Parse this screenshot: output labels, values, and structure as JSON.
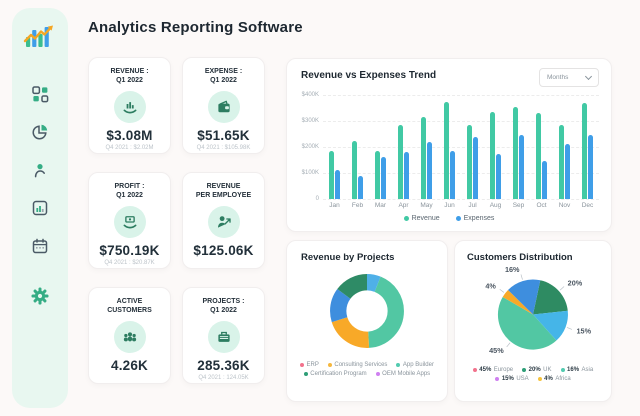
{
  "app": {
    "title": "Analytics Reporting Software"
  },
  "sidebar": {
    "items": [
      {
        "icon": "logo-analytics-icon"
      },
      {
        "icon": "dashboard-grid-icon"
      },
      {
        "icon": "pie-chart-icon"
      },
      {
        "icon": "user-icon"
      },
      {
        "icon": "stats-panel-icon"
      },
      {
        "icon": "calendar-icon"
      },
      {
        "icon": "settings-gear-icon"
      }
    ]
  },
  "kpi": {
    "cards": [
      {
        "title": "REVENUE :\nQ1 2022",
        "value": "$3.08M",
        "subtitle": "Q4 2021 : $2.02M",
        "icon": "hand-chart-icon"
      },
      {
        "title": "EXPENSE :\nQ1 2022",
        "value": "$51.65K",
        "subtitle": "Q4 2021 : $105.98K",
        "icon": "wallet-icon"
      },
      {
        "title": "PROFIT :\nQ1 2022",
        "value": "$750.19K",
        "subtitle": "Q4 2021 : $20.87K",
        "icon": "hand-money-icon"
      },
      {
        "title": "REVENUE\nPER EMPLOYEE",
        "value": "$125.06K",
        "subtitle": "",
        "icon": "employee-growth-icon"
      },
      {
        "title": "ACTIVE\nCUSTOMERS",
        "value": "4.26K",
        "subtitle": "",
        "icon": "customers-icon"
      },
      {
        "title": "PROJECTS :\nQ1 2022",
        "value": "285.36K",
        "subtitle": "Q4 2021 : 124.05K",
        "icon": "briefcase-icon"
      }
    ]
  },
  "trend": {
    "title": "Revenue vs Expenses Trend",
    "dropdown_value": "Months"
  },
  "chart_data": [
    {
      "type": "bar",
      "title": "Revenue vs Expenses Trend",
      "categories": [
        "Jan",
        "Feb",
        "Mar",
        "Apr",
        "May",
        "Jun",
        "Jul",
        "Aug",
        "Sep",
        "Oct",
        "Nov",
        "Dec"
      ],
      "series": [
        {
          "name": "Revenue",
          "color": "#41C9A4",
          "values": [
            185,
            225,
            185,
            285,
            315,
            375,
            285,
            335,
            355,
            330,
            285,
            370
          ]
        },
        {
          "name": "Expenses",
          "color": "#3F9EE8",
          "values": [
            110,
            90,
            160,
            180,
            220,
            185,
            240,
            175,
            245,
            145,
            210,
            245
          ]
        }
      ],
      "value_unit": "K USD",
      "ylim": [
        0,
        400
      ],
      "yticks": [
        "$400K",
        "$300K",
        "$200K",
        "$100K",
        "0"
      ],
      "grid": true,
      "legend_position": "bottom"
    },
    {
      "type": "pie",
      "subtype": "donut",
      "title": "Revenue by Projects",
      "segments_clockwise_from_top": [
        {
          "pct": 6,
          "color": "#4FB0E8"
        },
        {
          "pct": 43,
          "color": "#52C7A3"
        },
        {
          "pct": 21,
          "color": "#F8A928"
        },
        {
          "pct": 15,
          "color": "#3E8EDE"
        },
        {
          "pct": 15,
          "color": "#2E8B66"
        }
      ],
      "legend": [
        {
          "label": "ERP",
          "color": "#F2728C"
        },
        {
          "label": "Consulting Services",
          "color": "#F5B73E"
        },
        {
          "label": "App Builder",
          "color": "#52CBB0"
        },
        {
          "label": "Certification Program",
          "color": "#2E9E77"
        },
        {
          "label": "OEM Mobile Apps",
          "color": "#CF80F0"
        }
      ]
    },
    {
      "type": "pie",
      "title": "Customers Distribution",
      "start_angle_deg": 12,
      "segments_clockwise": [
        {
          "label": "UK",
          "pct": 20,
          "color": "#2E8B62",
          "callout": "20%"
        },
        {
          "label": "USA",
          "pct": 15,
          "color": "#45B5E8",
          "callout": "15%"
        },
        {
          "label": "Europe",
          "pct": 45,
          "color": "#52C7A3",
          "callout": "45%"
        },
        {
          "label": "Africa",
          "pct": 4,
          "color": "#F8A928",
          "callout": "4%"
        },
        {
          "label": "Asia",
          "pct": 16,
          "color": "#3E8EDE",
          "callout": "16%"
        }
      ],
      "legend": [
        {
          "pct": "45%",
          "label": "Europe",
          "color": "#F2728C"
        },
        {
          "pct": "20%",
          "label": "UK",
          "color": "#2E9E77"
        },
        {
          "pct": "16%",
          "label": "Asia",
          "color": "#52CBB0"
        },
        {
          "pct": "15%",
          "label": "USA",
          "color": "#CF80F0"
        },
        {
          "pct": "4%",
          "label": "Africa",
          "color": "#F5C33E"
        }
      ]
    }
  ],
  "colors": {
    "accent_green": "#41C9A4",
    "accent_blue": "#3F9EE8",
    "icon_green_dark": "#2D7D61",
    "sidebar_bg": "#E8F7F0",
    "icon_circle_bg": "#D9F3E9",
    "orange": "#F5A623"
  }
}
